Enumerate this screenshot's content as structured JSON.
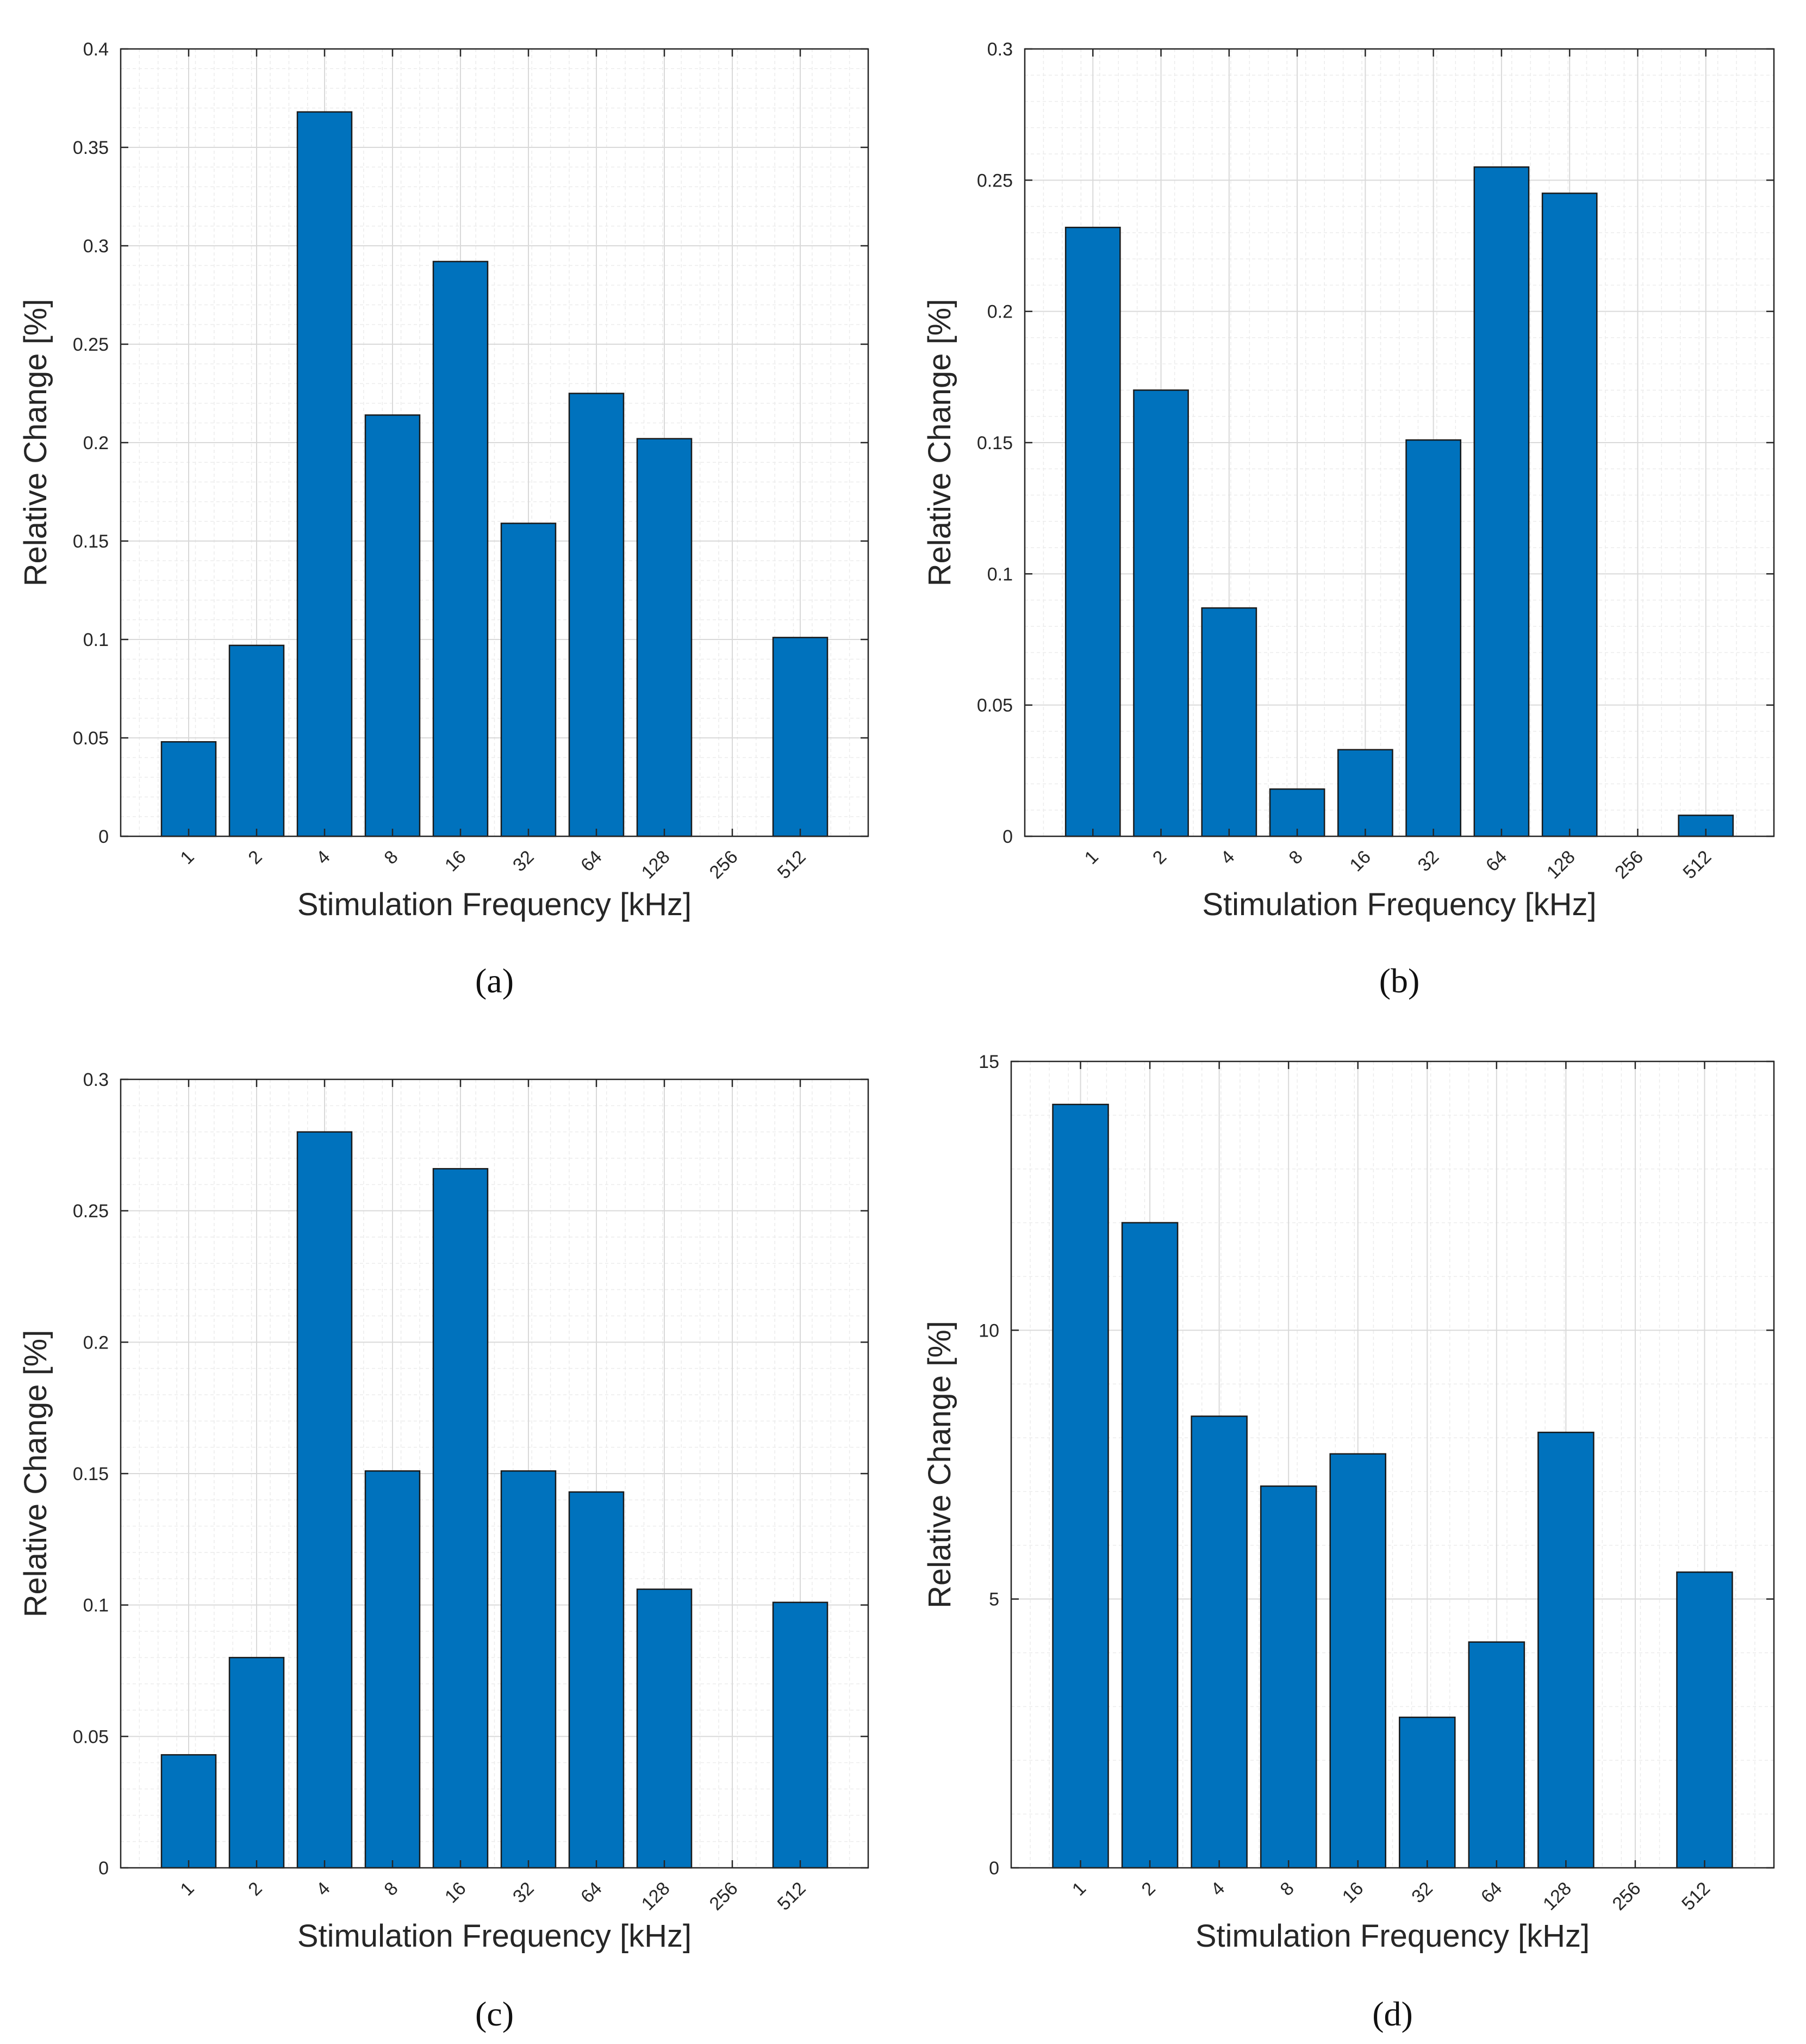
{
  "figure": {
    "background": "#ffffff",
    "bar_color": "#0072bd",
    "bar_edge": "#1a1a1a",
    "grid_major": "#d9d9d9",
    "grid_minor": "#ececec",
    "axis_color": "#262626"
  },
  "chart_data": [
    {
      "type": "bar",
      "panel": "(a)",
      "panel_letter": "a",
      "categories": [
        "1",
        "2",
        "4",
        "8",
        "16",
        "32",
        "64",
        "128",
        "256",
        "512"
      ],
      "values": [
        0.048,
        0.097,
        0.368,
        0.214,
        0.292,
        0.159,
        0.225,
        0.202,
        0,
        0.101
      ],
      "ylim": [
        0,
        0.4
      ],
      "yticks": [
        0,
        0.05,
        0.1,
        0.15,
        0.2,
        0.25,
        0.3,
        0.35,
        0.4
      ],
      "ytick_labels": [
        "0",
        "0.05",
        "0.1",
        "0.15",
        "0.2",
        "0.25",
        "0.3",
        "0.35",
        "0.4"
      ],
      "xlabel": "Stimulation Frequency [kHz]",
      "ylabel": "Relative Change [%]",
      "title": "",
      "grid": true,
      "minor_grid": true
    },
    {
      "type": "bar",
      "panel": "(b)",
      "panel_letter": "b",
      "categories": [
        "1",
        "2",
        "4",
        "8",
        "16",
        "32",
        "64",
        "128",
        "256",
        "512"
      ],
      "values": [
        0.232,
        0.17,
        0.087,
        0.018,
        0.033,
        0.151,
        0.255,
        0.245,
        0,
        0.008
      ],
      "ylim": [
        0,
        0.3
      ],
      "yticks": [
        0,
        0.05,
        0.1,
        0.15,
        0.2,
        0.25,
        0.3
      ],
      "ytick_labels": [
        "0",
        "0.05",
        "0.1",
        "0.15",
        "0.2",
        "0.25",
        "0.3"
      ],
      "xlabel": "Stimulation Frequency [kHz]",
      "ylabel": "Relative Change [%]",
      "title": "",
      "grid": true,
      "minor_grid": true
    },
    {
      "type": "bar",
      "panel": "(c)",
      "panel_letter": "c",
      "categories": [
        "1",
        "2",
        "4",
        "8",
        "16",
        "32",
        "64",
        "128",
        "256",
        "512"
      ],
      "values": [
        0.043,
        0.08,
        0.28,
        0.151,
        0.266,
        0.151,
        0.143,
        0.106,
        0,
        0.101
      ],
      "ylim": [
        0,
        0.3
      ],
      "yticks": [
        0,
        0.05,
        0.1,
        0.15,
        0.2,
        0.25,
        0.3
      ],
      "ytick_labels": [
        "0",
        "0.05",
        "0.1",
        "0.15",
        "0.2",
        "0.25",
        "0.3"
      ],
      "xlabel": "Stimulation Frequency [kHz]",
      "ylabel": "Relative Change [%]",
      "title": "",
      "grid": true,
      "minor_grid": true
    },
    {
      "type": "bar",
      "panel": "(d)",
      "panel_letter": "d",
      "categories": [
        "1",
        "2",
        "4",
        "8",
        "16",
        "32",
        "64",
        "128",
        "256",
        "512"
      ],
      "values": [
        14.2,
        12.0,
        8.4,
        7.1,
        7.7,
        2.8,
        4.2,
        8.1,
        0,
        5.5
      ],
      "ylim": [
        0,
        15
      ],
      "yticks": [
        0,
        5,
        10,
        15
      ],
      "ytick_labels": [
        "0",
        "5",
        "10",
        "15"
      ],
      "xlabel": "Stimulation Frequency [kHz]",
      "ylabel": "Relative Change [%]",
      "title": "",
      "grid": true,
      "minor_grid": true
    }
  ]
}
